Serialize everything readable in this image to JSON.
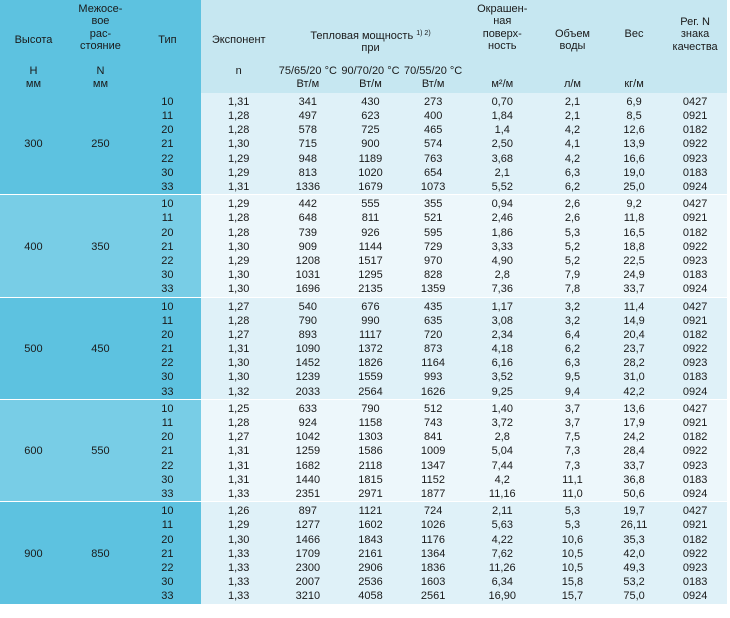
{
  "header": {
    "height": "Высота",
    "spacing_line1": "Межосе-",
    "spacing_line2": "вое",
    "spacing_line3": "рас-",
    "spacing_line4": "стояние",
    "type": "Тип",
    "exponent": "Экспонент",
    "heat_power": "Тепловая мощность",
    "heat_power_sup": "1) 2)",
    "heat_power_at": "при",
    "painted_line1": "Окрашен-",
    "painted_line2": "ная",
    "painted_line3": "поверх-",
    "painted_line4": "ность",
    "water_line1": "Объем",
    "water_line2": "воды",
    "weight": "Вес",
    "reg_line1": "Рег. N",
    "reg_line2": "знака",
    "reg_line3": "качества",
    "h_symbol": "H",
    "n_symbol": "N",
    "n_small": "n",
    "mode1": "75/65/20 °C",
    "mode2": "90/70/20 °C",
    "mode3": "70/55/20 °C",
    "unit_mm1": "мм",
    "unit_mm2": "мм",
    "unit_w1": "Вт/м",
    "unit_w2": "Вт/м",
    "unit_w3": "Вт/м",
    "unit_area": "м²/м",
    "unit_water": "л/м",
    "unit_weight": "кг/м"
  },
  "groups": [
    {
      "height": "300",
      "spacing": "250",
      "rows": [
        [
          "10",
          "1,31",
          "341",
          "430",
          "273",
          "0,70",
          "2,1",
          "6,9",
          "0427"
        ],
        [
          "11",
          "1,28",
          "497",
          "623",
          "400",
          "1,84",
          "2,1",
          "8,5",
          "0921"
        ],
        [
          "20",
          "1,28",
          "578",
          "725",
          "465",
          "1,4",
          "4,2",
          "12,6",
          "0182"
        ],
        [
          "21",
          "1,30",
          "715",
          "900",
          "574",
          "2,50",
          "4,1",
          "13,9",
          "0922"
        ],
        [
          "22",
          "1,29",
          "948",
          "1189",
          "763",
          "3,68",
          "4,2",
          "16,6",
          "0923"
        ],
        [
          "30",
          "1,29",
          "813",
          "1020",
          "654",
          "2,1",
          "6,3",
          "19,0",
          "0183"
        ],
        [
          "33",
          "1,31",
          "1336",
          "1679",
          "1073",
          "5,52",
          "6,2",
          "25,0",
          "0924"
        ]
      ]
    },
    {
      "height": "400",
      "spacing": "350",
      "rows": [
        [
          "10",
          "1,29",
          "442",
          "555",
          "355",
          "0,94",
          "2,6",
          "9,2",
          "0427"
        ],
        [
          "11",
          "1,28",
          "648",
          "811",
          "521",
          "2,46",
          "2,6",
          "11,8",
          "0921"
        ],
        [
          "20",
          "1,28",
          "739",
          "926",
          "595",
          "1,86",
          "5,3",
          "16,5",
          "0182"
        ],
        [
          "21",
          "1,30",
          "909",
          "1144",
          "729",
          "3,33",
          "5,2",
          "18,8",
          "0922"
        ],
        [
          "22",
          "1,29",
          "1208",
          "1517",
          "970",
          "4,90",
          "5,2",
          "22,5",
          "0923"
        ],
        [
          "30",
          "1,30",
          "1031",
          "1295",
          "828",
          "2,8",
          "7,9",
          "24,9",
          "0183"
        ],
        [
          "33",
          "1,30",
          "1696",
          "2135",
          "1359",
          "7,36",
          "7,8",
          "33,7",
          "0924"
        ]
      ]
    },
    {
      "height": "500",
      "spacing": "450",
      "rows": [
        [
          "10",
          "1,27",
          "540",
          "676",
          "435",
          "1,17",
          "3,2",
          "11,4",
          "0427"
        ],
        [
          "11",
          "1,28",
          "790",
          "990",
          "635",
          "3,08",
          "3,2",
          "14,9",
          "0921"
        ],
        [
          "20",
          "1,27",
          "893",
          "1117",
          "720",
          "2,34",
          "6,4",
          "20,4",
          "0182"
        ],
        [
          "21",
          "1,31",
          "1090",
          "1372",
          "873",
          "4,18",
          "6,2",
          "23,7",
          "0922"
        ],
        [
          "22",
          "1,30",
          "1452",
          "1826",
          "1164",
          "6,16",
          "6,3",
          "28,2",
          "0923"
        ],
        [
          "30",
          "1,30",
          "1239",
          "1559",
          "993",
          "3,52",
          "9,5",
          "31,0",
          "0183"
        ],
        [
          "33",
          "1,32",
          "2033",
          "2564",
          "1626",
          "9,25",
          "9,4",
          "42,2",
          "0924"
        ]
      ]
    },
    {
      "height": "600",
      "spacing": "550",
      "rows": [
        [
          "10",
          "1,25",
          "633",
          "790",
          "512",
          "1,40",
          "3,7",
          "13,6",
          "0427"
        ],
        [
          "11",
          "1,28",
          "924",
          "1158",
          "743",
          "3,72",
          "3,7",
          "17,9",
          "0921"
        ],
        [
          "20",
          "1,27",
          "1042",
          "1303",
          "841",
          "2,8",
          "7,5",
          "24,2",
          "0182"
        ],
        [
          "21",
          "1,31",
          "1259",
          "1586",
          "1009",
          "5,04",
          "7,3",
          "28,4",
          "0922"
        ],
        [
          "22",
          "1,31",
          "1682",
          "2118",
          "1347",
          "7,44",
          "7,3",
          "33,7",
          "0923"
        ],
        [
          "30",
          "1,31",
          "1440",
          "1815",
          "1152",
          "4,2",
          "11,1",
          "36,8",
          "0183"
        ],
        [
          "33",
          "1,33",
          "2351",
          "2971",
          "1877",
          "11,16",
          "11,0",
          "50,6",
          "0924"
        ]
      ]
    },
    {
      "height": "900",
      "spacing": "850",
      "rows": [
        [
          "10",
          "1,26",
          "897",
          "1121",
          "724",
          "2,11",
          "5,3",
          "19,7",
          "0427"
        ],
        [
          "11",
          "1,29",
          "1277",
          "1602",
          "1026",
          "5,63",
          "5,3",
          "26,11",
          "0921"
        ],
        [
          "20",
          "1,30",
          "1466",
          "1843",
          "1176",
          "4,22",
          "10,6",
          "35,3",
          "0182"
        ],
        [
          "21",
          "1,33",
          "1709",
          "2161",
          "1364",
          "7,62",
          "10,5",
          "42,0",
          "0922"
        ],
        [
          "22",
          "1,33",
          "2300",
          "2906",
          "1836",
          "11,26",
          "10,5",
          "49,3",
          "0923"
        ],
        [
          "30",
          "1,33",
          "2007",
          "2536",
          "1603",
          "6,34",
          "15,8",
          "53,2",
          "0183"
        ],
        [
          "33",
          "1,33",
          "3210",
          "4058",
          "2561",
          "16,90",
          "15,7",
          "75,0",
          "0924"
        ]
      ]
    }
  ]
}
